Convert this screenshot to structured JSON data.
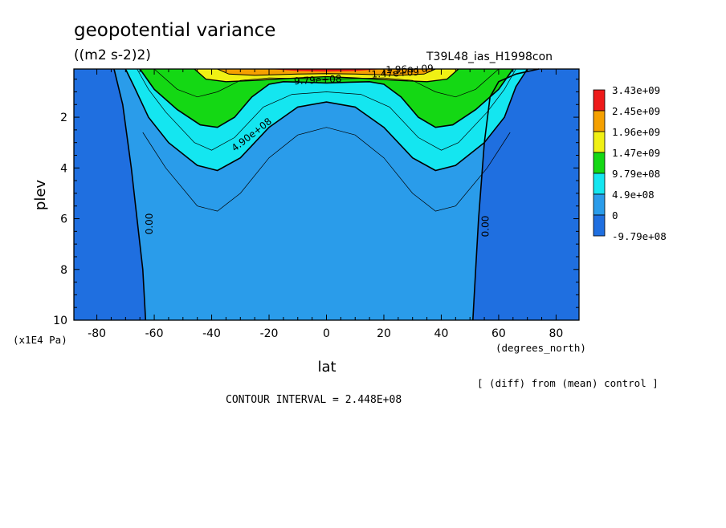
{
  "title": "geopotential variance",
  "units": "((m2 s-2)2)",
  "run_label": "T39L48_ias_H1998con",
  "note": "[ (diff) from (mean) control ]",
  "contour_interval": "CONTOUR INTERVAL = 2.448E+08",
  "colors": {
    "lvl_neg": "#1f6fe0",
    "lvl_0": "#2a9cea",
    "lvl_1": "#14e6f0",
    "lvl_2": "#14d814",
    "lvl_3": "#f0f014",
    "lvl_4": "#f5a000",
    "lvl_5": "#ee1a1a"
  },
  "chart_data": {
    "type": "contour",
    "xlabel": "lat",
    "x_units": "(degrees_north)",
    "ylabel": "plev",
    "y_units": "(x1E4 Pa)",
    "xlim": [
      -88,
      88
    ],
    "ylim": [
      10,
      0.1
    ],
    "x_ticks": [
      "-80",
      "-60",
      "-40",
      "-20",
      "0",
      "20",
      "40",
      "60",
      "80"
    ],
    "y_ticks": [
      "2",
      "4",
      "6",
      "8",
      "10"
    ],
    "legend": {
      "position": "right",
      "labels": [
        "3.43e+09",
        "2.45e+09",
        "1.96e+09",
        "1.47e+09",
        "9.79e+08",
        "4.9e+08",
        "0",
        "-9.79e+08"
      ]
    },
    "contour_labels": [
      "0.00",
      "0.00",
      "4.90e+08",
      "9.79e+08",
      "1.47e+09",
      "1.96e+09"
    ]
  }
}
